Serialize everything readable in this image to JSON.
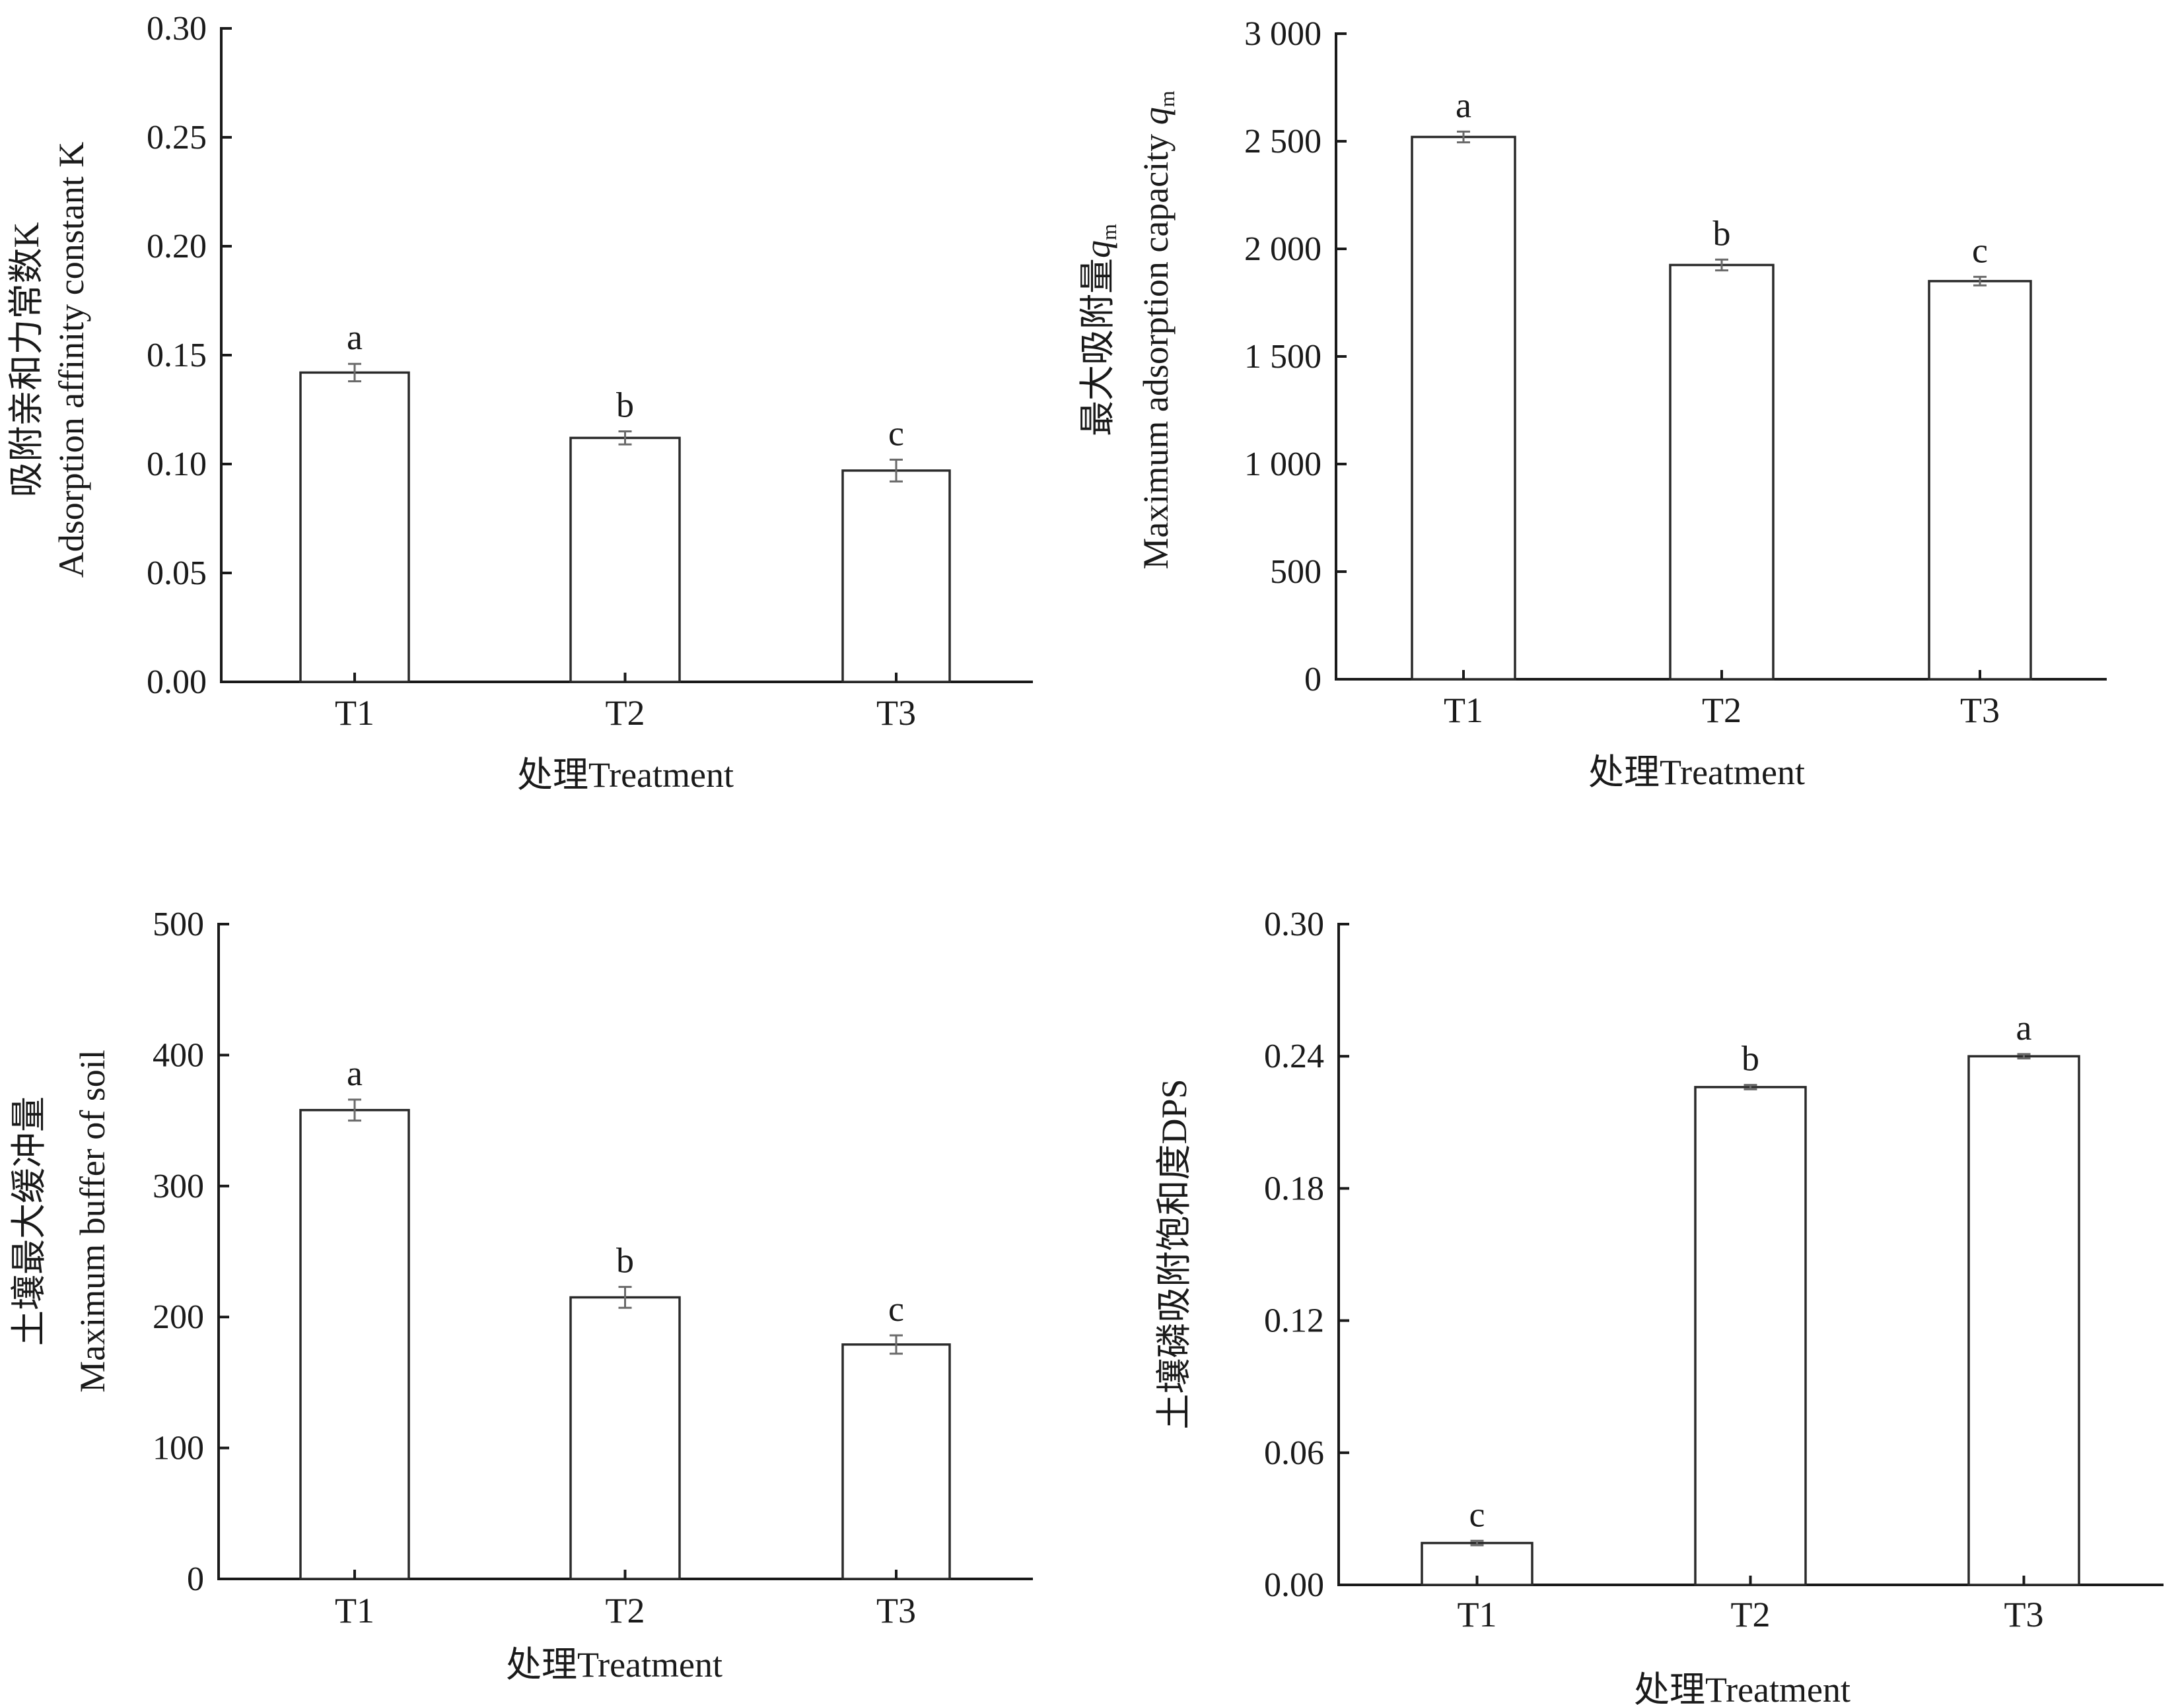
{
  "chart_data": [
    {
      "type": "bar",
      "id": "chart-k",
      "categories": [
        "T1",
        "T2",
        "T3"
      ],
      "values": [
        0.142,
        0.112,
        0.097
      ],
      "errors": [
        0.004,
        0.003,
        0.005
      ],
      "significance": [
        "a",
        "b",
        "c"
      ],
      "xlabel": "处理Treatment",
      "ylabel_lines": [
        "吸附亲和力常数K",
        "Adsorption affinity constant K"
      ],
      "ylim": [
        0,
        0.3
      ],
      "yticks": [
        0.0,
        0.05,
        0.1,
        0.15,
        0.2,
        0.25,
        0.3
      ],
      "ytick_labels": [
        "0.00",
        "0.05",
        "0.10",
        "0.15",
        "0.20",
        "0.25",
        "0.30"
      ],
      "grid": false
    },
    {
      "type": "bar",
      "id": "chart-qm",
      "categories": [
        "T1",
        "T2",
        "T3"
      ],
      "values": [
        2520,
        1925,
        1850
      ],
      "errors": [
        25,
        25,
        20
      ],
      "significance": [
        "a",
        "b",
        "c"
      ],
      "xlabel": "处理Treatment",
      "ylabel_lines": [
        {
          "text": "最大吸附量",
          "var": "q",
          "sub": "m"
        },
        {
          "text": "Maximum adsorption capacity ",
          "var": "q",
          "sub": "m"
        }
      ],
      "ylim": [
        0,
        3000
      ],
      "yticks": [
        0,
        500,
        1000,
        1500,
        2000,
        2500,
        3000
      ],
      "ytick_labels": [
        "0",
        "500",
        "1 000",
        "1 500",
        "2 000",
        "2 500",
        "3 000"
      ],
      "grid": false
    },
    {
      "type": "bar",
      "id": "chart-buffer",
      "categories": [
        "T1",
        "T2",
        "T3"
      ],
      "values": [
        358,
        215,
        179
      ],
      "errors": [
        8,
        8,
        7
      ],
      "significance": [
        "a",
        "b",
        "c"
      ],
      "xlabel": "处理Treatment",
      "ylabel_lines": [
        "土壤最大缓冲量",
        "Maximum buffer of soil"
      ],
      "ylim": [
        0,
        500
      ],
      "yticks": [
        0,
        100,
        200,
        300,
        400,
        500
      ],
      "ytick_labels": [
        "0",
        "100",
        "200",
        "300",
        "400",
        "500"
      ],
      "grid": false
    },
    {
      "type": "bar",
      "id": "chart-dps",
      "categories": [
        "T1",
        "T2",
        "T3"
      ],
      "values": [
        0.019,
        0.226,
        0.24
      ],
      "errors": [
        0.001,
        0.001,
        0.001
      ],
      "significance": [
        "c",
        "b",
        "a"
      ],
      "xlabel": "处理Treatment",
      "ylabel_lines": [
        "土壤磷吸附饱和度DPS"
      ],
      "ylim": [
        0,
        0.3
      ],
      "yticks": [
        0.0,
        0.06,
        0.12,
        0.18,
        0.24,
        0.3
      ],
      "ytick_labels": [
        "0.00",
        "0.06",
        "0.12",
        "0.18",
        "0.24",
        "0.30"
      ],
      "grid": false
    }
  ],
  "colors": {
    "axis": "#1a1a1a",
    "bar_fill": "#ffffff",
    "bar_stroke": "#2a2a2a",
    "error_bar": "#6a6a6a"
  }
}
